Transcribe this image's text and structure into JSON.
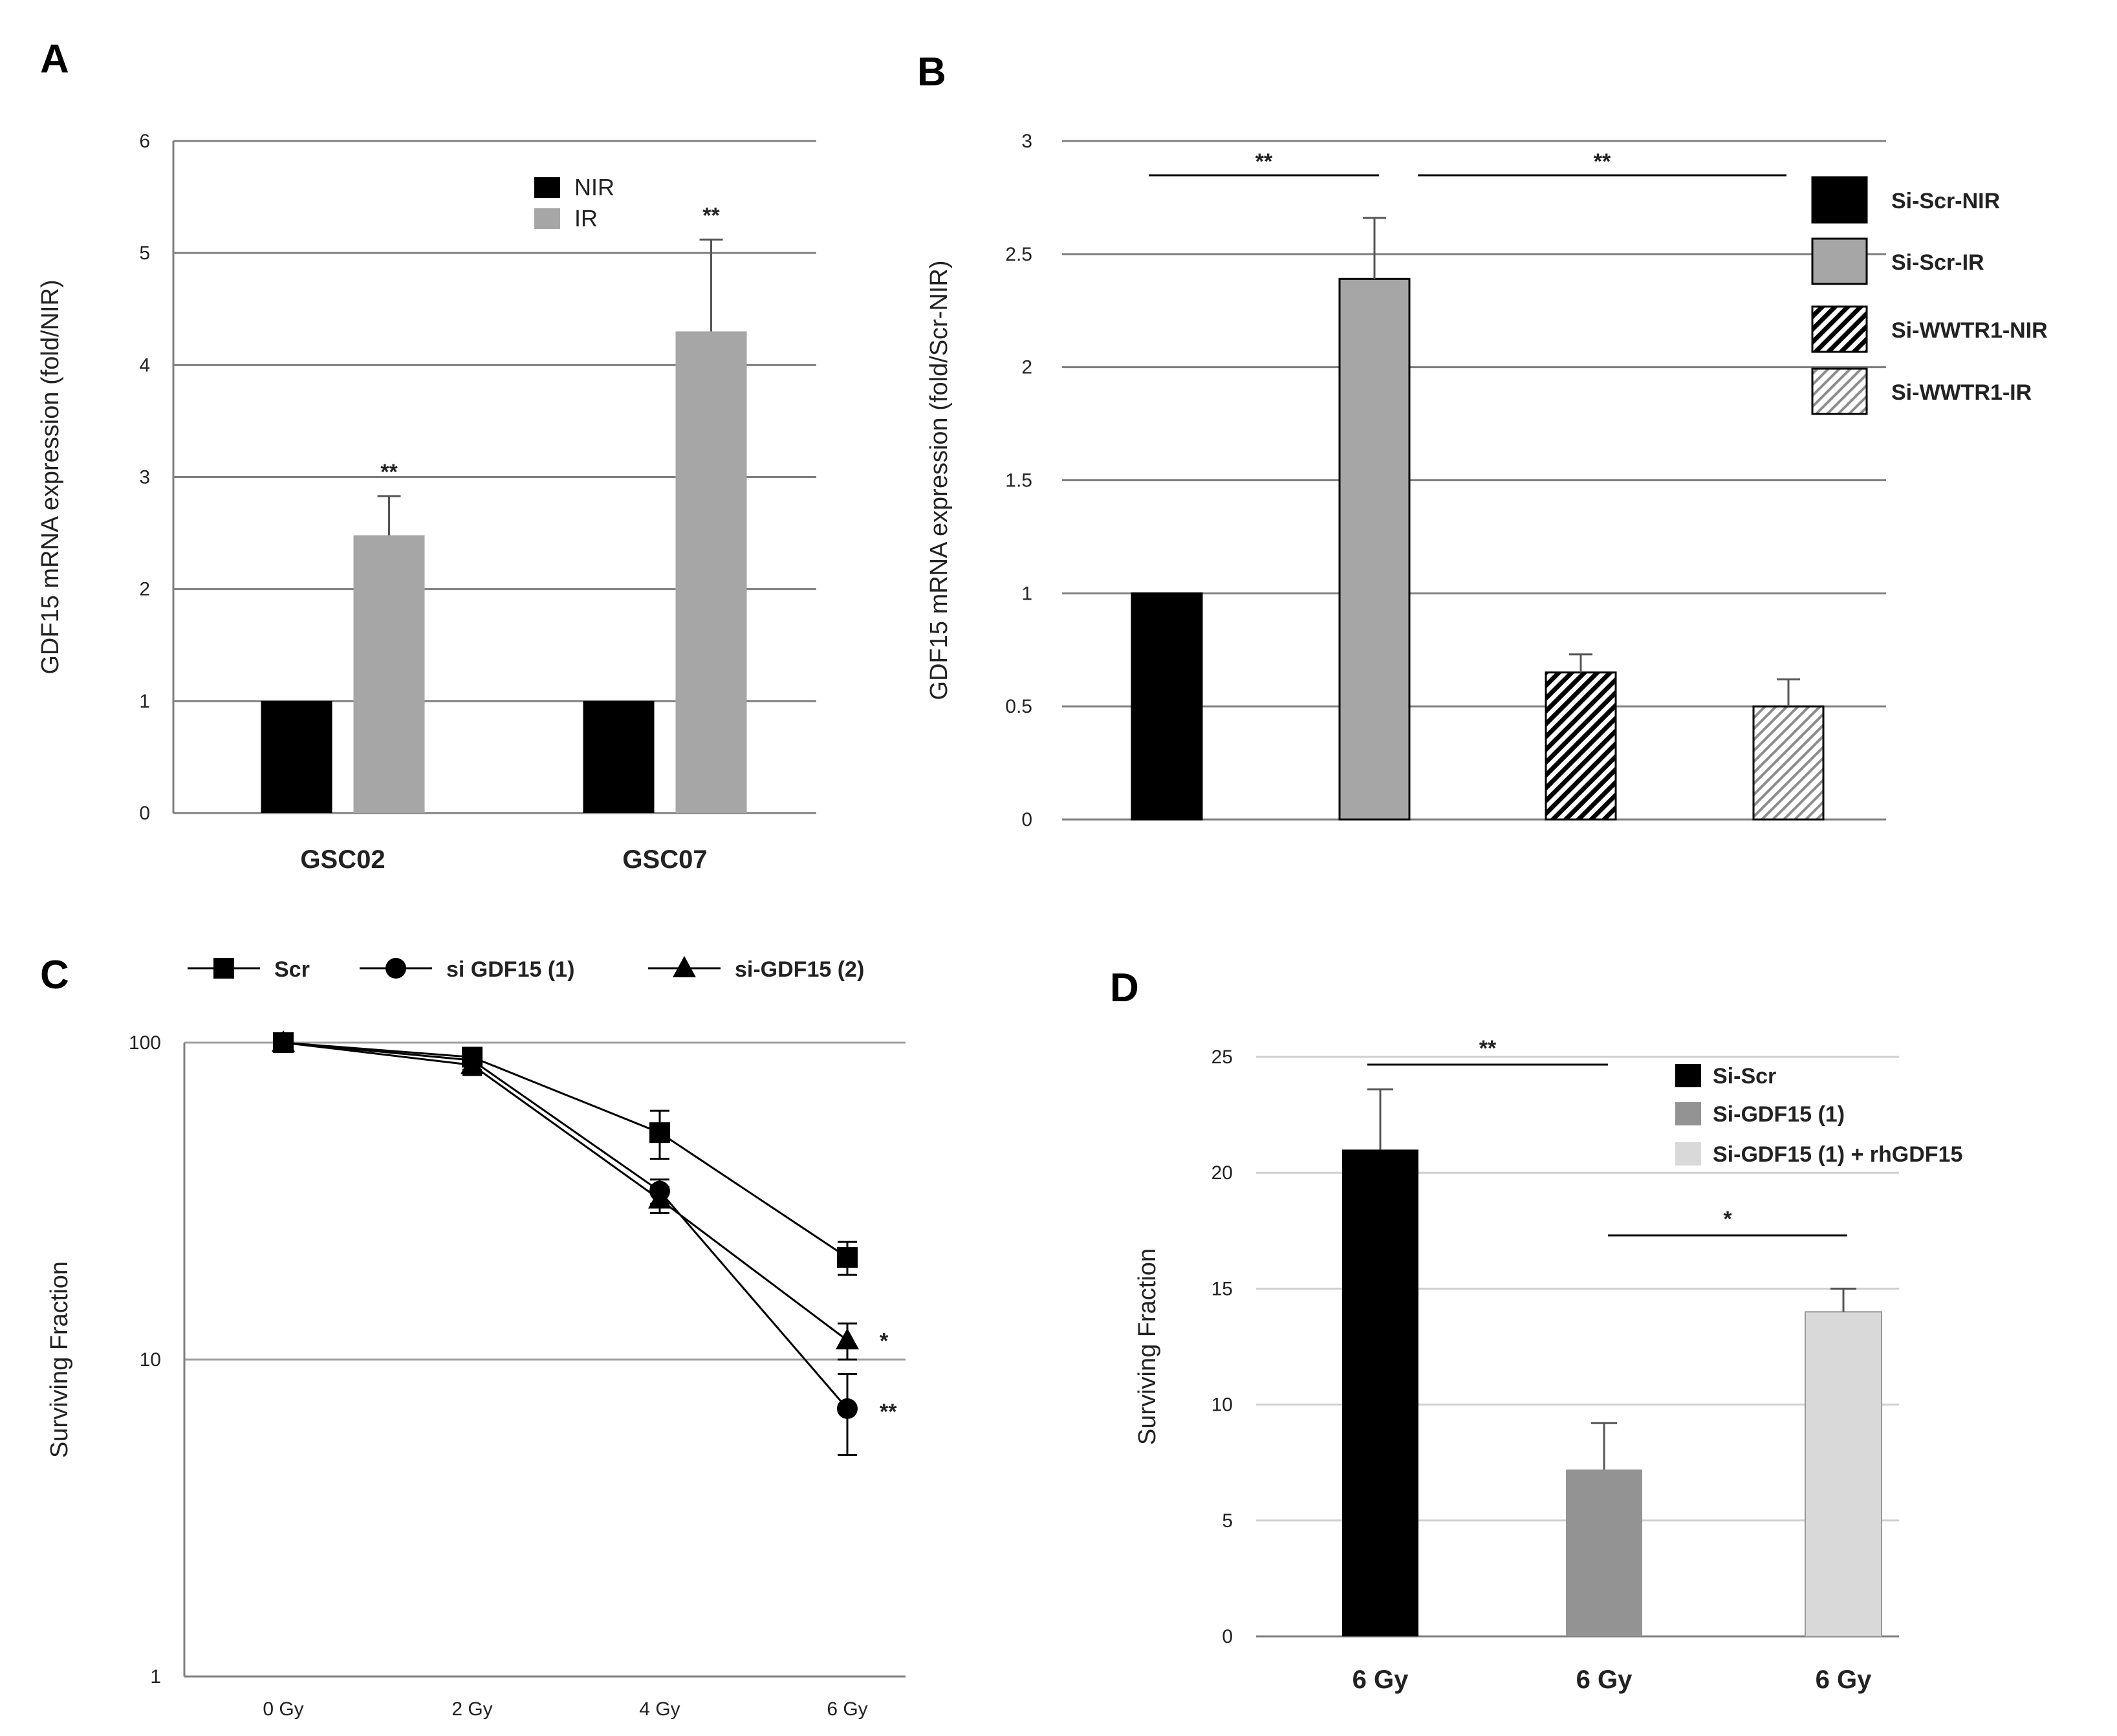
{
  "chart_data": [
    {
      "panel": "A",
      "type": "bar",
      "ylabel": "GDF15 mRNA expression (fold/NIR)",
      "ylim": [
        0,
        6
      ],
      "yticks": [
        "0",
        "1",
        "2",
        "3",
        "4",
        "5",
        "6"
      ],
      "categories": [
        "GSC02",
        "GSC07"
      ],
      "series": [
        {
          "name": "NIR",
          "values": [
            1,
            1
          ],
          "errors": [
            0,
            0
          ],
          "color": "#000000"
        },
        {
          "name": "IR",
          "values": [
            2.48,
            4.3
          ],
          "errors": [
            0.35,
            0.82
          ],
          "color": "#a6a6a6"
        }
      ],
      "annotations": [
        "**",
        "**"
      ],
      "grid": true,
      "legend": "top-center"
    },
    {
      "panel": "B",
      "type": "bar",
      "ylabel": "GDF15 mRNA expression (fold/Scr-NIR)",
      "ylim": [
        0,
        3
      ],
      "yticks": [
        "0",
        "0.5",
        "1",
        "1.5",
        "2",
        "2.5",
        "3"
      ],
      "series": [
        {
          "name": "Si-Scr-NIR",
          "value": 1.0,
          "error": 0,
          "color": "#000000",
          "pattern": "solid"
        },
        {
          "name": "Si-Scr-IR",
          "value": 2.39,
          "error": 0.27,
          "color": "#a6a6a6",
          "pattern": "solid"
        },
        {
          "name": "Si-WWTR1-NIR",
          "value": 0.65,
          "error": 0.08,
          "color": "#000000",
          "pattern": "hatch-dense"
        },
        {
          "name": "Si-WWTR1-IR",
          "value": 0.5,
          "error": 0.12,
          "color": "#8c8c8c",
          "pattern": "hatch-light"
        }
      ],
      "brackets": [
        {
          "label": "**",
          "from": 0,
          "to": 1
        },
        {
          "label": "**",
          "from": 1,
          "to": 3
        }
      ],
      "grid": true,
      "legend": "right"
    },
    {
      "panel": "C",
      "type": "line",
      "ylabel": "Surviving Fraction",
      "yscale": "log",
      "ylim": [
        1,
        100
      ],
      "yticks": [
        "1",
        "10",
        "100"
      ],
      "categories": [
        "0 Gy",
        "2 Gy",
        "4 Gy",
        "6 Gy"
      ],
      "series": [
        {
          "name": "Scr",
          "marker": "square",
          "values": [
            100,
            90,
            52,
            21
          ],
          "errors": [
            3,
            5,
            9,
            2.5
          ]
        },
        {
          "name": "si GDF15 (1)",
          "marker": "circle",
          "values": [
            100,
            88,
            34,
            7
          ],
          "errors": [
            3,
            6,
            3,
            2
          ]
        },
        {
          "name": "si-GDF15 (2)",
          "marker": "triangle",
          "values": [
            100,
            85,
            32,
            11.5
          ],
          "errors": [
            3,
            6,
            3,
            1.5
          ]
        }
      ],
      "annotations": [
        "*",
        "**"
      ],
      "grid": true,
      "legend": "top"
    },
    {
      "panel": "D",
      "type": "bar",
      "ylabel": "Surviving Fraction",
      "ylim": [
        0,
        25
      ],
      "yticks": [
        "0",
        "5",
        "10",
        "15",
        "20",
        "25"
      ],
      "categories": [
        "6 Gy",
        "6 Gy",
        "6 Gy"
      ],
      "series": [
        {
          "name": "Si-Scr",
          "value": 21,
          "error": 2.6,
          "color": "#000000"
        },
        {
          "name": "Si-GDF15 (1)",
          "value": 7.2,
          "error": 2.0,
          "color": "#939393"
        },
        {
          "name": "Si-GDF15 (1) + rhGDF15",
          "value": 14,
          "error": 1.0,
          "color": "#d9d9d9"
        }
      ],
      "brackets": [
        {
          "label": "**",
          "from": 0,
          "to": 1
        },
        {
          "label": "*",
          "from": 1,
          "to": 2
        }
      ],
      "grid": true,
      "legend": "top-right"
    }
  ]
}
